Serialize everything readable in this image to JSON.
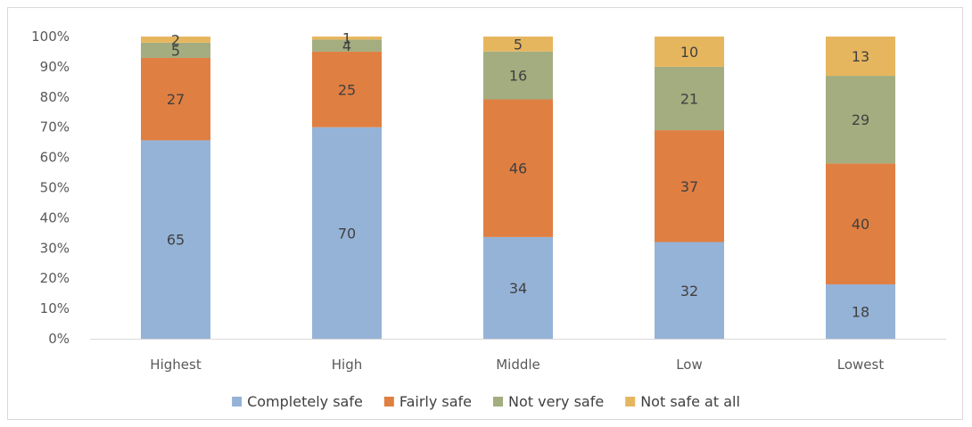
{
  "chart_data": {
    "type": "bar",
    "stacked": true,
    "percent_stacked": true,
    "categories": [
      "Highest",
      "High",
      "Middle",
      "Low",
      "Lowest"
    ],
    "series": [
      {
        "name": "Completely safe",
        "color": "#95B3D7",
        "values": [
          65,
          70,
          34,
          32,
          18
        ]
      },
      {
        "name": "Fairly safe",
        "color": "#E07F42",
        "values": [
          27,
          25,
          46,
          37,
          40
        ]
      },
      {
        "name": "Not very safe",
        "color": "#A3AD7F",
        "values": [
          5,
          4,
          16,
          21,
          29
        ]
      },
      {
        "name": "Not safe at all",
        "color": "#E6B65E",
        "values": [
          2,
          1,
          5,
          10,
          13
        ]
      }
    ],
    "y_ticks": [
      "0%",
      "10%",
      "20%",
      "30%",
      "40%",
      "50%",
      "60%",
      "70%",
      "80%",
      "90%",
      "100%"
    ],
    "ylim": [
      0,
      100
    ],
    "grid": false,
    "legend_position": "bottom",
    "title": "",
    "xlabel": "",
    "ylabel": ""
  }
}
